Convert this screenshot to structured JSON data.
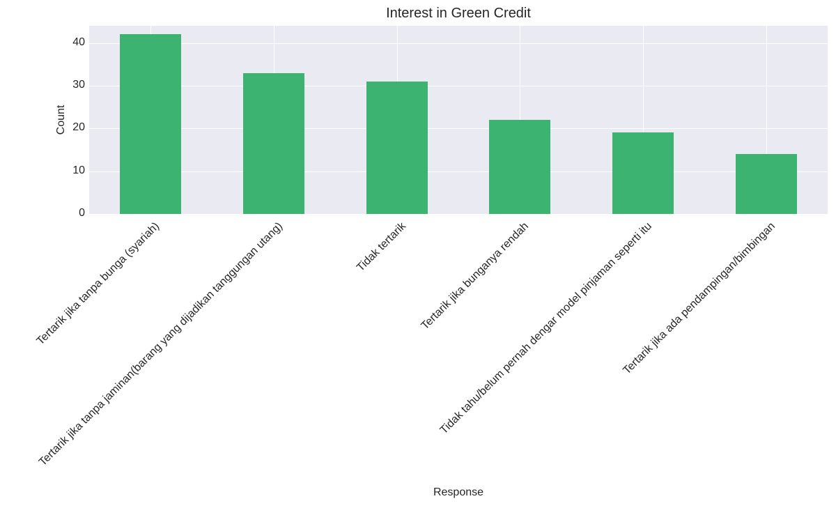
{
  "chart_data": {
    "type": "bar",
    "title": "Interest in Green Credit",
    "xlabel": "Response",
    "ylabel": "Count",
    "categories": [
      "Tertarik jika tanpa bunga (syariah)",
      "Tertarik jika tanpa jaminan(barang yang dijadikan tanggungan utang)",
      "Tidak tertarik",
      "Tertarik jika bunganya rendah",
      "Tidak tahu/belum pernah dengar model pinjaman seperti itu",
      "Tertarik jika ada pendampingan/bimbingan"
    ],
    "values": [
      42,
      33,
      31,
      22,
      19,
      14
    ],
    "ylim": [
      0,
      44
    ],
    "yticks": [
      "0",
      "10",
      "20",
      "30",
      "40"
    ],
    "grid": true,
    "legend": null,
    "colors": {
      "bar": "#3cb371",
      "plot_background": "#eaeaf2",
      "grid": "#ffffff"
    },
    "xtick_rotation": 45
  }
}
